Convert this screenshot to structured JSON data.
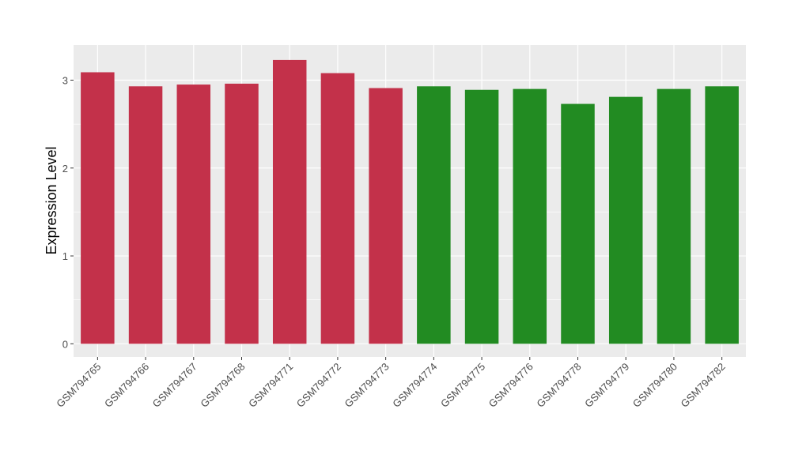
{
  "chart_data": {
    "type": "bar",
    "title": "",
    "xlabel": "",
    "ylabel": "Expression Level",
    "ylim": [
      -0.15,
      3.4
    ],
    "yticks": [
      0,
      1,
      2,
      3
    ],
    "grid": true,
    "legend": "none",
    "categories": [
      "GSM794765",
      "GSM794766",
      "GSM794767",
      "GSM794768",
      "GSM794771",
      "GSM794772",
      "GSM794773",
      "GSM794774",
      "GSM794775",
      "GSM794776",
      "GSM794778",
      "GSM794779",
      "GSM794780",
      "GSM794782"
    ],
    "values": [
      3.09,
      2.93,
      2.95,
      2.96,
      3.23,
      3.08,
      2.91,
      2.93,
      2.89,
      2.9,
      2.73,
      2.81,
      2.9,
      2.93
    ],
    "bar_colors": [
      "#C3314A",
      "#C3314A",
      "#C3314A",
      "#C3314A",
      "#C3314A",
      "#C3314A",
      "#C3314A",
      "#228B22",
      "#228B22",
      "#228B22",
      "#228B22",
      "#228B22",
      "#228B22",
      "#228B22"
    ],
    "panel_color": "#EBEBEB"
  }
}
